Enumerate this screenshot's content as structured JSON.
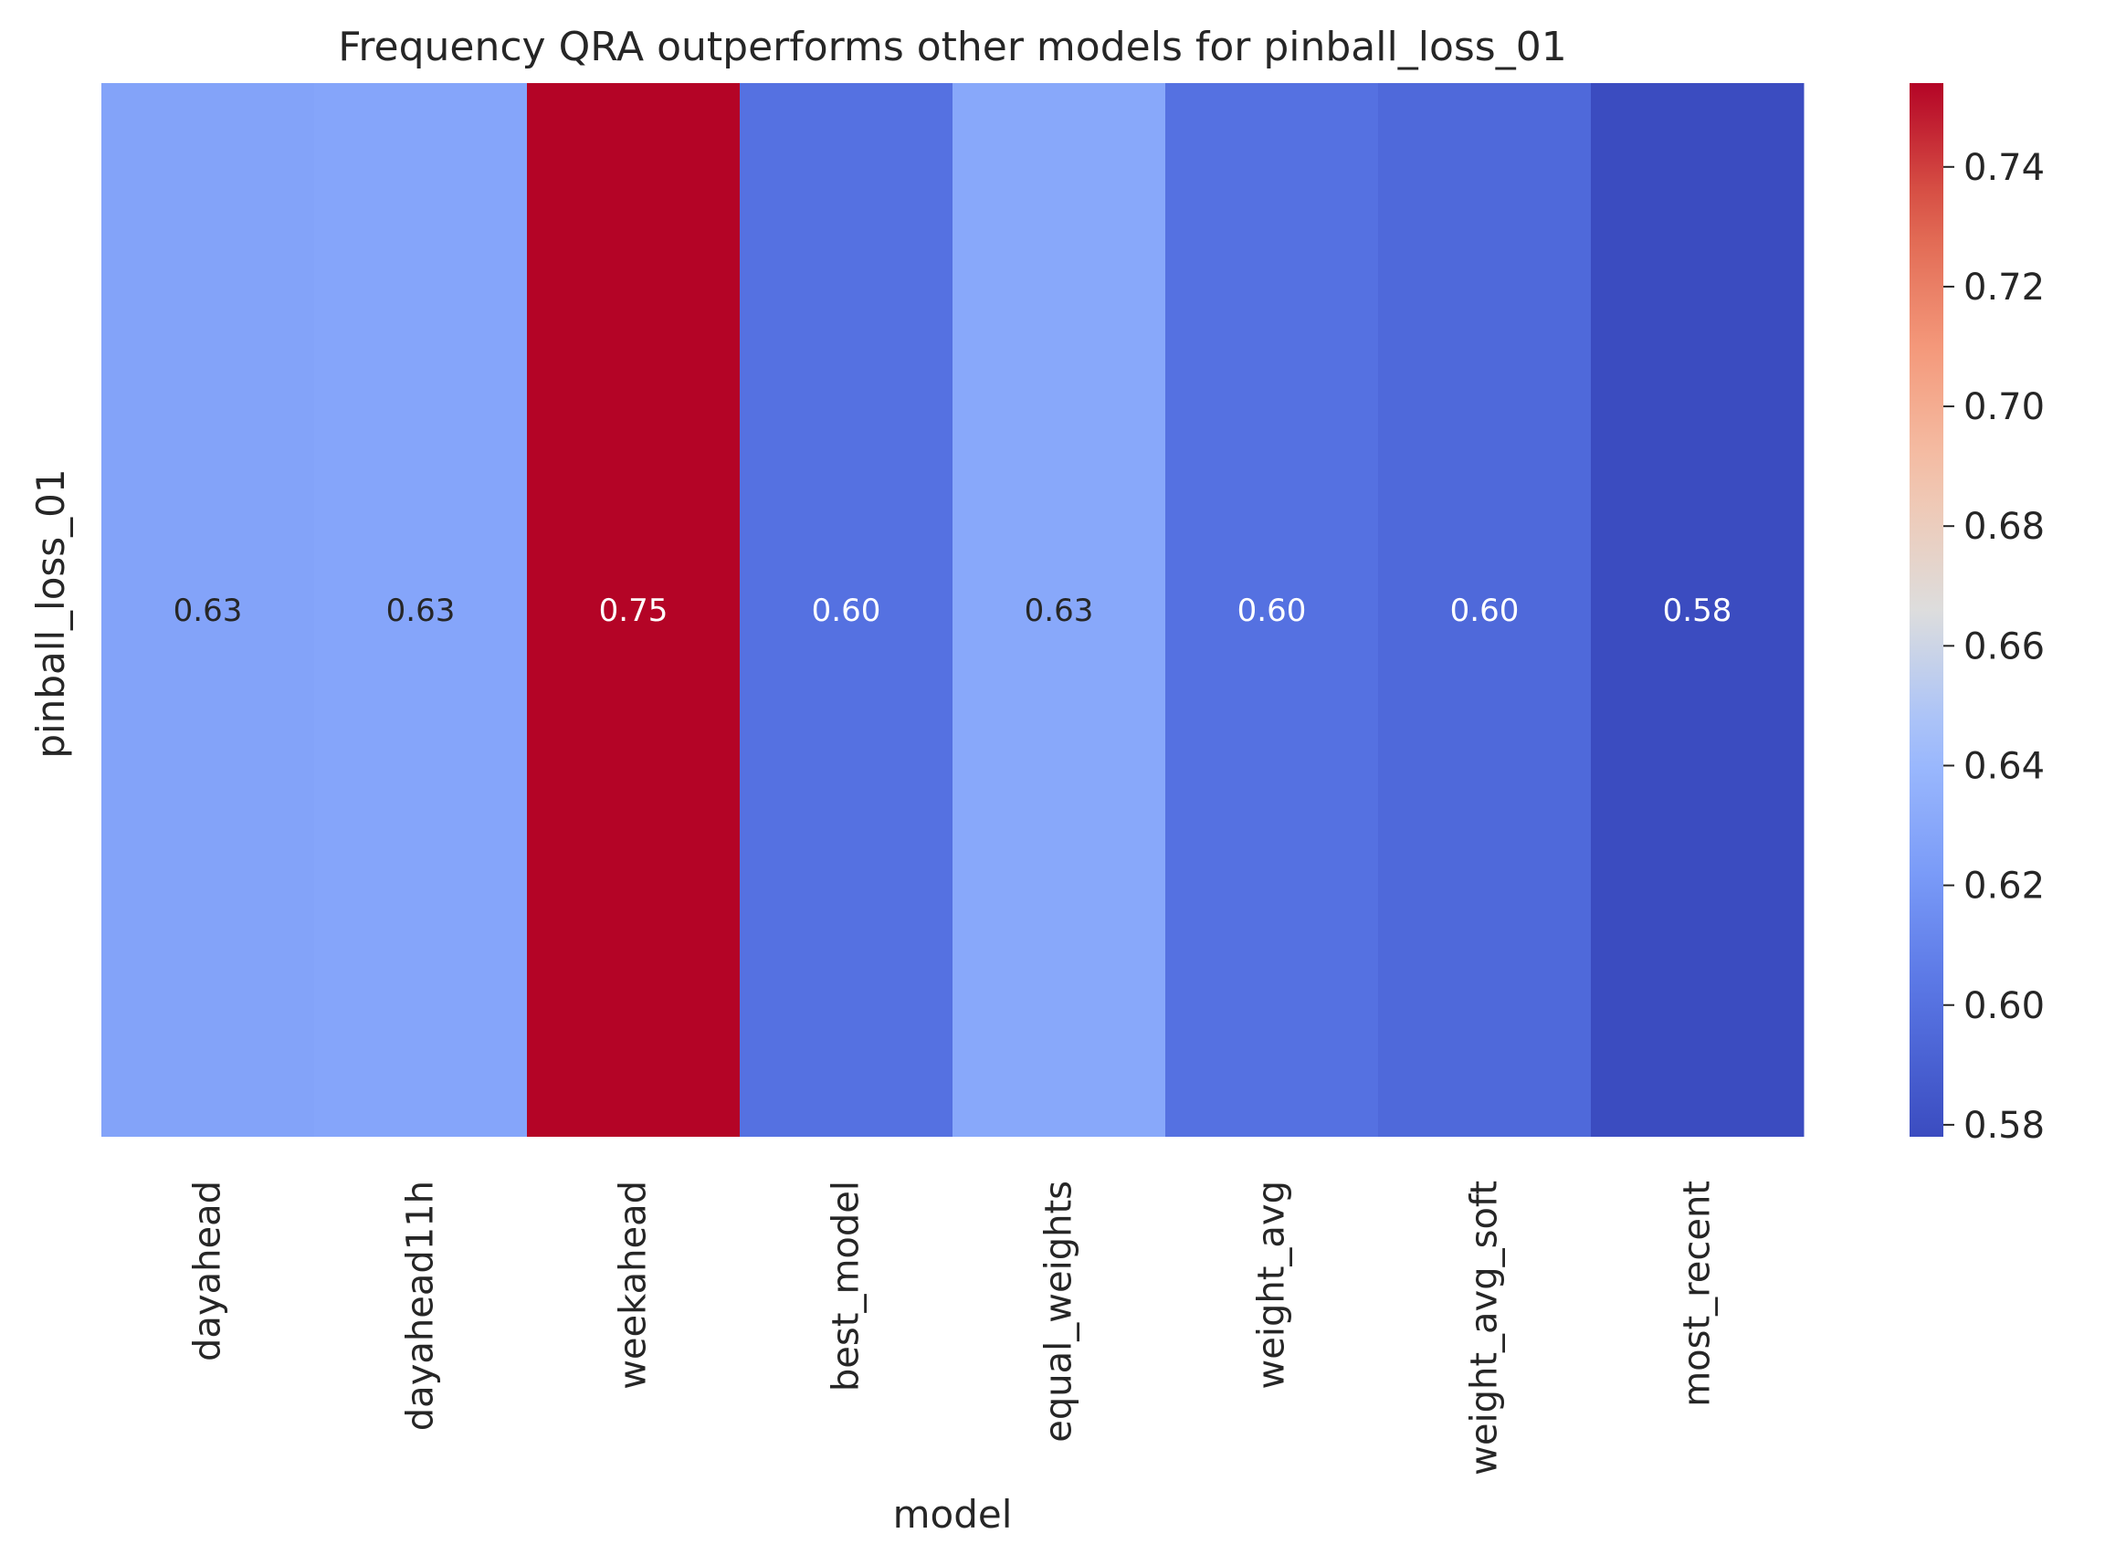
{
  "chart_data": {
    "type": "heatmap",
    "title": "Frequency QRA outperforms other models for pinball_loss_01",
    "xlabel": "model",
    "ylabel": "pinball_loss_01",
    "rows": [
      "pinball_loss_01"
    ],
    "categories": [
      "dayahead",
      "dayahead11h",
      "weekahead",
      "best_model",
      "equal_weights",
      "weight_avg",
      "weight_avg_soft",
      "most_recent"
    ],
    "values": [
      0.627,
      0.628,
      0.754,
      0.6,
      0.63,
      0.6,
      0.595,
      0.578
    ],
    "value_labels": [
      "0.63",
      "0.63",
      "0.75",
      "0.60",
      "0.63",
      "0.60",
      "0.60",
      "0.58"
    ],
    "colorbar": {
      "colormap": "coolwarm",
      "range": [
        0.578,
        0.754
      ],
      "ticks": [
        0.58,
        0.6,
        0.62,
        0.64,
        0.66,
        0.68,
        0.7,
        0.72,
        0.74
      ],
      "tick_labels": [
        "0.58",
        "0.60",
        "0.62",
        "0.64",
        "0.66",
        "0.68",
        "0.70",
        "0.72",
        "0.74"
      ]
    },
    "cell_text_colors": {
      "dark": "#262626",
      "light": "#ffffff"
    }
  }
}
